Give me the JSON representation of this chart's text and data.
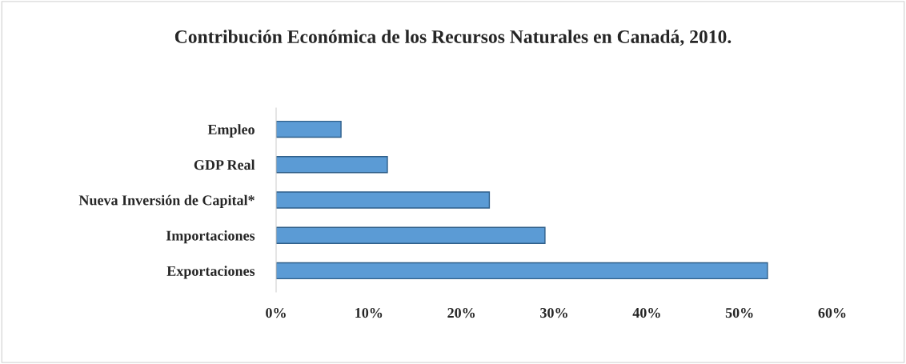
{
  "chart_data": {
    "type": "bar",
    "orientation": "horizontal",
    "title": "Contribución Económica de los Recursos Naturales en Canadá, 2010.",
    "categories": [
      "Empleo",
      "GDP Real",
      "Nueva Inversión de Capital*",
      "Importaciones",
      "Exportaciones"
    ],
    "values": [
      7,
      12,
      23,
      29,
      53
    ],
    "color": "#5b9bd5",
    "xlim": [
      0,
      60
    ],
    "xticks": [
      {
        "value": 0,
        "label": "0%"
      },
      {
        "value": 10,
        "label": "10%"
      },
      {
        "value": 20,
        "label": "20%"
      },
      {
        "value": 30,
        "label": "30%"
      },
      {
        "value": 40,
        "label": "40%"
      },
      {
        "value": 50,
        "label": "50%"
      },
      {
        "value": 60,
        "label": "60%"
      }
    ],
    "grid": false,
    "legend": false
  }
}
